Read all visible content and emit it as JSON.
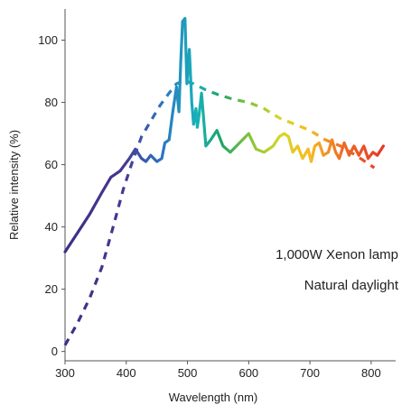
{
  "chart_data": {
    "type": "line",
    "title": "",
    "xlabel": "Wavelength (nm)",
    "ylabel": "Relative intensity (%)",
    "xlim": [
      300,
      840
    ],
    "ylim": [
      -3,
      110
    ],
    "x_ticks": [
      300,
      400,
      500,
      600,
      700,
      800
    ],
    "y_ticks": [
      0,
      20,
      40,
      60,
      80,
      100
    ],
    "grid": false,
    "legend_position": "bottom-right",
    "series": [
      {
        "name": "1,000W Xenon lamp",
        "style": "solid",
        "points": [
          [
            300,
            32
          ],
          [
            320,
            38
          ],
          [
            340,
            44
          ],
          [
            360,
            51
          ],
          [
            375,
            56
          ],
          [
            390,
            58
          ],
          [
            405,
            62
          ],
          [
            415,
            65
          ],
          [
            425,
            62
          ],
          [
            432,
            61
          ],
          [
            440,
            63
          ],
          [
            450,
            61
          ],
          [
            458,
            62
          ],
          [
            463,
            67
          ],
          [
            470,
            68
          ],
          [
            476,
            77
          ],
          [
            482,
            85
          ],
          [
            486,
            77
          ],
          [
            489,
            93
          ],
          [
            492,
            106
          ],
          [
            496,
            107
          ],
          [
            499,
            86
          ],
          [
            503,
            97
          ],
          [
            507,
            80
          ],
          [
            510,
            73
          ],
          [
            514,
            78
          ],
          [
            516,
            72
          ],
          [
            519,
            76
          ],
          [
            523,
            83
          ],
          [
            527,
            73
          ],
          [
            530,
            66
          ],
          [
            538,
            68
          ],
          [
            548,
            71
          ],
          [
            558,
            66
          ],
          [
            570,
            64
          ],
          [
            585,
            67
          ],
          [
            600,
            70
          ],
          [
            612,
            65
          ],
          [
            625,
            64
          ],
          [
            640,
            66
          ],
          [
            650,
            69
          ],
          [
            658,
            70
          ],
          [
            665,
            69
          ],
          [
            672,
            64
          ],
          [
            680,
            66
          ],
          [
            688,
            62
          ],
          [
            697,
            65
          ],
          [
            702,
            61
          ],
          [
            708,
            66
          ],
          [
            715,
            67
          ],
          [
            722,
            63
          ],
          [
            730,
            64
          ],
          [
            736,
            68
          ],
          [
            742,
            64
          ],
          [
            748,
            62
          ],
          [
            756,
            67
          ],
          [
            764,
            63
          ],
          [
            772,
            66
          ],
          [
            780,
            63
          ],
          [
            788,
            66
          ],
          [
            795,
            62
          ],
          [
            803,
            64
          ],
          [
            810,
            63
          ],
          [
            820,
            66
          ]
        ]
      },
      {
        "name": "Natural daylight",
        "style": "dashed",
        "points": [
          [
            300,
            2
          ],
          [
            320,
            9
          ],
          [
            340,
            17
          ],
          [
            360,
            27
          ],
          [
            380,
            41
          ],
          [
            395,
            52
          ],
          [
            410,
            61
          ],
          [
            425,
            69
          ],
          [
            440,
            74
          ],
          [
            455,
            79
          ],
          [
            470,
            83
          ],
          [
            482,
            86
          ],
          [
            495,
            87
          ],
          [
            510,
            86
          ],
          [
            530,
            84
          ],
          [
            550,
            82.5
          ],
          [
            575,
            81
          ],
          [
            600,
            80
          ],
          [
            625,
            78
          ],
          [
            650,
            75
          ],
          [
            675,
            73
          ],
          [
            700,
            71
          ],
          [
            725,
            68
          ],
          [
            750,
            66
          ],
          [
            775,
            63
          ],
          [
            790,
            61
          ],
          [
            805,
            59
          ]
        ]
      }
    ]
  }
}
